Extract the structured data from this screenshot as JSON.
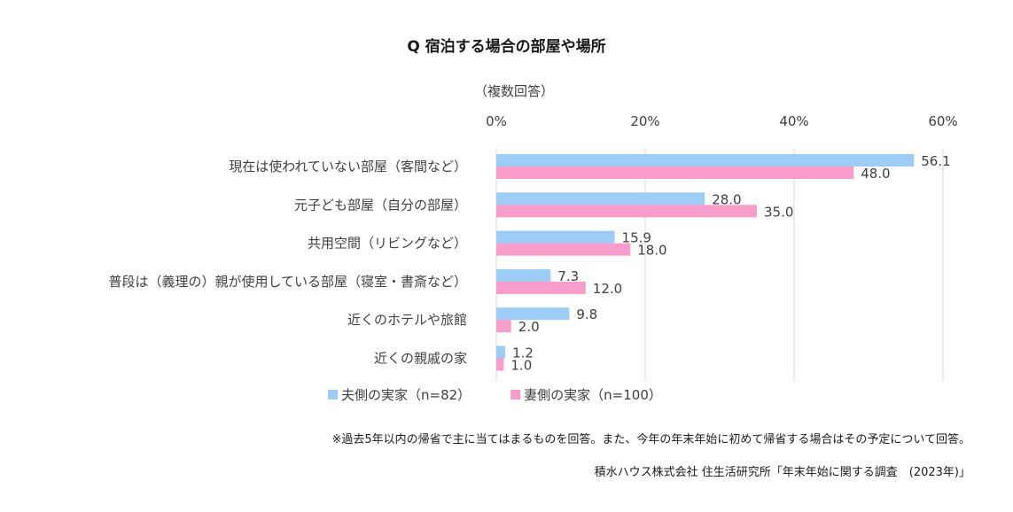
{
  "chart_data": {
    "type": "bar",
    "orientation": "horizontal",
    "title": "Q 宿泊する場合の部屋や場所",
    "axis_note": "（複数回答）",
    "xlim": [
      0,
      60
    ],
    "ticks": [
      0,
      20,
      40,
      60
    ],
    "tick_labels": [
      "0%",
      "20%",
      "40%",
      "60%"
    ],
    "grid": true,
    "legend_position": "bottom",
    "categories": [
      "現在は使われていない部屋（客間など）",
      "元子ども部屋（自分の部屋）",
      "共用空間（リビングなど）",
      "普段は（義理の）親が使用している部屋（寝室・書斎など）",
      "近くのホテルや旅館",
      "近くの親戚の家"
    ],
    "series": [
      {
        "name": "夫側の実家（n=82）",
        "color": "#9dcdf7",
        "values": [
          56.1,
          28.0,
          15.9,
          7.3,
          9.8,
          1.2
        ],
        "labels": [
          "56.1",
          "28.0",
          "15.9",
          "7.3",
          "9.8",
          "1.2"
        ]
      },
      {
        "name": "妻側の実家（n=100）",
        "color": "#f79ccb",
        "values": [
          48.0,
          35.0,
          18.0,
          12.0,
          2.0,
          1.0
        ],
        "labels": [
          "48.0",
          "35.0",
          "18.0",
          "12.0",
          "2.0",
          "1.0"
        ]
      }
    ]
  },
  "footnote": "※過去5年以内の帰省で主に当てはまるものを回答。また、今年の年末年始に初めて帰省する場合はその予定について回答。",
  "source": "積水ハウス株式会社 住生活研究所「年末年始に関する調査　(2023年)」"
}
